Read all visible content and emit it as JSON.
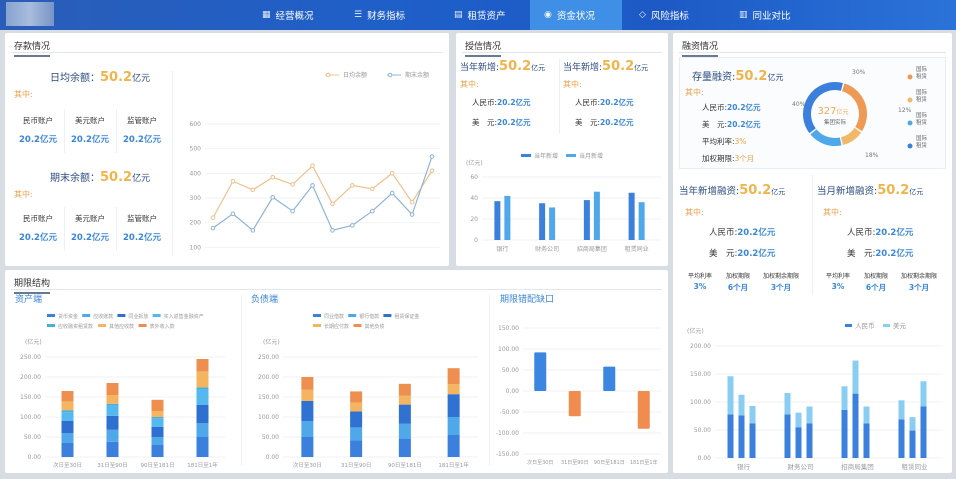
{
  "nav": {
    "tabs": [
      {
        "label": "经营概况",
        "icon": "chart-icon"
      },
      {
        "label": "财务指标",
        "icon": "database-icon"
      },
      {
        "label": "租赁资产",
        "icon": "building-icon"
      },
      {
        "label": "资金状况",
        "icon": "money-icon",
        "active": true
      },
      {
        "label": "风险指标",
        "icon": "shield-icon"
      },
      {
        "label": "同业对比",
        "icon": "bar-chart-icon"
      }
    ]
  },
  "colors": {
    "accent": "#3f8fe6",
    "orange": "#f0b44c",
    "blue": "#3a86d8"
  },
  "deposit": {
    "title": "存款情况",
    "daily": {
      "label": "日均余额：",
      "value": "50.2",
      "unit": "亿元",
      "of": "其中:",
      "accounts": [
        {
          "label": "民币账户",
          "value": "20.2亿元"
        },
        {
          "label": "美元账户",
          "value": "20.2亿元"
        },
        {
          "label": "监管账户",
          "value": "20.2亿元"
        }
      ]
    },
    "end": {
      "label": "期末余额：",
      "value": "50.2",
      "unit": "亿元",
      "of": "其中:",
      "accounts": [
        {
          "label": "民币账户",
          "value": "20.2亿元"
        },
        {
          "label": "美元账户",
          "value": "20.2亿元"
        },
        {
          "label": "监管账户",
          "value": "20.2亿元"
        }
      ]
    }
  },
  "credit": {
    "title": "授信情况",
    "cols": [
      {
        "label": "当年新增:",
        "value": "50.2",
        "unit": "亿元",
        "of": "其中:",
        "rmb_label": "人民币:",
        "rmb": "20.2亿元",
        "usd_label": "美　元:",
        "usd": "20.2亿元"
      },
      {
        "label": "当年新增:",
        "value": "50.2",
        "unit": "亿元",
        "of": "其中:",
        "rmb_label": "人民币:",
        "rmb": "20.2亿元",
        "usd_label": "美　元:",
        "usd": "20.2亿元"
      }
    ]
  },
  "financing": {
    "title": "融资情况",
    "stock": {
      "label": "存量融资:",
      "value": "50.2",
      "unit": "亿元",
      "of": "其中:",
      "rows": [
        {
          "label": "人民币:",
          "value": "20.2亿元",
          "color": "blue"
        },
        {
          "label": "美　元:",
          "value": "20.2亿元",
          "color": "blue"
        },
        {
          "label": "平均利率:",
          "value": "3%",
          "color": "orange"
        },
        {
          "label": "加权期限:",
          "value": "3个月",
          "color": "orange"
        }
      ]
    },
    "donut": {
      "center_value": "327",
      "center_unit": "亿元",
      "center_label": "集团实际",
      "slices": [
        {
          "label": "30%",
          "value": 30,
          "color": "#ee9a55"
        },
        {
          "label": "12%",
          "value": 12,
          "color": "#f2b86a"
        },
        {
          "label": "18%",
          "value": 18,
          "color": "#4fa8ea"
        },
        {
          "label": "40%",
          "value": 40,
          "color": "#3a80dc"
        }
      ],
      "legend": [
        {
          "label": "国际租赁",
          "color": "#ee9a55"
        },
        {
          "label": "国际租赁",
          "color": "#f2b86a"
        },
        {
          "label": "国际租赁",
          "color": "#4fa8ea"
        },
        {
          "label": "国际租赁",
          "color": "#3a80dc"
        }
      ]
    },
    "cols": [
      {
        "label": "当年新增融资:",
        "value": "50.2",
        "unit": "亿元",
        "of": "其中:",
        "rmb_label": "人民币:",
        "rmb": "20.2亿元",
        "usd_label": "美　元:",
        "usd": "20.2亿元",
        "stats": [
          {
            "label": "平均利率",
            "value": "3%"
          },
          {
            "label": "加权期限",
            "value": "6个月"
          },
          {
            "label": "加权剩余期限",
            "value": "3个月"
          }
        ]
      },
      {
        "label": "当月新增融资:",
        "value": "50.2",
        "unit": "亿元",
        "of": "其中:",
        "rmb_label": "人民币:",
        "rmb": "20.2亿元",
        "usd_label": "美　元:",
        "usd": "20.2亿元",
        "stats": [
          {
            "label": "平均利率",
            "value": "3%"
          },
          {
            "label": "加权期限",
            "value": "6个月"
          },
          {
            "label": "加权剩余期限",
            "value": "3个月"
          }
        ]
      }
    ]
  },
  "term": {
    "title": "期限结构",
    "asset_title": "资产端",
    "liab_title": "负债端",
    "gap_title": "期限错配缺口"
  },
  "chart_data": [
    {
      "id": "deposit_line",
      "type": "line",
      "categories": [
        "1月",
        "2月",
        "3月",
        "4月",
        "5月",
        "6月",
        "7月",
        "8月",
        "9月",
        "10月",
        "11月",
        "12月"
      ],
      "ylim": [
        0,
        600
      ],
      "yticks": [
        0,
        100,
        200,
        300,
        400,
        500,
        600
      ],
      "series": [
        {
          "name": "日均余额",
          "color": "#f0c08e",
          "values": [
            220,
            368,
            333,
            384,
            355,
            431,
            276,
            351,
            337,
            400,
            283,
            411
          ]
        },
        {
          "name": "期末余额",
          "color": "#8fb3d6",
          "values": [
            178,
            236,
            169,
            303,
            247,
            351,
            169,
            189,
            247,
            320,
            233,
            468
          ]
        }
      ]
    },
    {
      "id": "credit_bar",
      "type": "bar",
      "ylabel": "(亿元)",
      "categories": [
        "银行",
        "财务公司",
        "招商局集团",
        "租赁同业"
      ],
      "ylim": [
        0,
        60
      ],
      "yticks": [
        0,
        20,
        40,
        60
      ],
      "series": [
        {
          "name": "当年新增",
          "color": "#3a80dc",
          "values": [
            37,
            35,
            38,
            45
          ]
        },
        {
          "name": "当月新增",
          "color": "#4fa8ea",
          "values": [
            42,
            31,
            46,
            36
          ]
        }
      ]
    },
    {
      "id": "asset_stack",
      "type": "bar",
      "stacked": true,
      "ylabel": "(亿元)",
      "categories": [
        "次日至30日",
        "31日至90日",
        "90日至181日",
        "181日至1年"
      ],
      "ylim": [
        0,
        250
      ],
      "yticks": [
        "0.00",
        "50.00",
        "100.00",
        "150.00",
        "200.00",
        "250.00"
      ],
      "series": [
        {
          "name": "货币资金",
          "color": "#3a80dc",
          "values": [
            35,
            38,
            30,
            50
          ]
        },
        {
          "name": "应收账款",
          "color": "#4fa8ea",
          "values": [
            25,
            30,
            20,
            35
          ]
        },
        {
          "name": "同业拆放",
          "color": "#2f6fcf",
          "values": [
            30,
            35,
            25,
            45
          ]
        },
        {
          "name": "买入返售金融资产",
          "color": "#55b8f0",
          "values": [
            22,
            27,
            22,
            40
          ]
        },
        {
          "name": "应收融资租赁款",
          "color": "#46b0d8",
          "values": [
            5,
            3,
            3,
            4
          ]
        },
        {
          "name": "其他应收款",
          "color": "#f4b460",
          "values": [
            22,
            22,
            15,
            40
          ]
        },
        {
          "name": "表外收入款",
          "color": "#ee8f50",
          "values": [
            26,
            30,
            28,
            31
          ]
        }
      ]
    },
    {
      "id": "liab_stack",
      "type": "bar",
      "stacked": true,
      "ylabel": "(亿元)",
      "categories": [
        "次日至30日",
        "31日至90日",
        "90日至181日",
        "181日至1年"
      ],
      "ylim": [
        0,
        250
      ],
      "yticks": [
        "0.00",
        "50.00",
        "100.00",
        "150.00",
        "200.00",
        "250.00"
      ],
      "series": [
        {
          "name": "同业借款",
          "color": "#3a80dc",
          "values": [
            50,
            42,
            45,
            55
          ]
        },
        {
          "name": "银行借款",
          "color": "#4fa8ea",
          "values": [
            40,
            32,
            38,
            45
          ]
        },
        {
          "name": "租赁保证金",
          "color": "#2f72d2",
          "values": [
            50,
            40,
            48,
            57
          ]
        },
        {
          "name": "长期应付款",
          "color": "#f4b460",
          "values": [
            28,
            22,
            22,
            25
          ]
        },
        {
          "name": "其他负债",
          "color": "#ee8f50",
          "values": [
            32,
            28,
            30,
            40
          ]
        }
      ]
    },
    {
      "id": "gap_bar",
      "type": "bar",
      "categories": [
        "次日至30日",
        "31日至90日",
        "90日至181日",
        "181日至1年"
      ],
      "ylim": [
        -150,
        150
      ],
      "yticks": [
        "-150.00",
        "-100.00",
        "-50.00",
        "0.00",
        "50.00",
        "100.00",
        "150.00"
      ],
      "values": [
        92,
        -60,
        58,
        -90
      ],
      "pos_color": "#3a86e0",
      "neg_color": "#f08c50"
    },
    {
      "id": "financing_stack",
      "type": "bar",
      "stacked": true,
      "ylabel": "(亿元)",
      "categories": [
        "银行",
        "财务公司",
        "招商局集团",
        "租赁同业"
      ],
      "ylim": [
        0,
        200
      ],
      "yticks": [
        "0.00",
        "50.00",
        "100.00",
        "150.00",
        "200.00"
      ],
      "series": [
        {
          "name": "人民币",
          "color": "#3a80dc",
          "values": [
            [
              78,
              76,
              62
            ],
            [
              78,
              55,
              62
            ],
            [
              86,
              115,
              62
            ],
            [
              69,
              49,
              92
            ]
          ]
        },
        {
          "name": "美元",
          "color": "#8acdf2",
          "values": [
            [
              68,
              37,
              31
            ],
            [
              38,
              26,
              30
            ],
            [
              42,
              59,
              30
            ],
            [
              34,
              24,
              45
            ]
          ]
        }
      ]
    }
  ]
}
